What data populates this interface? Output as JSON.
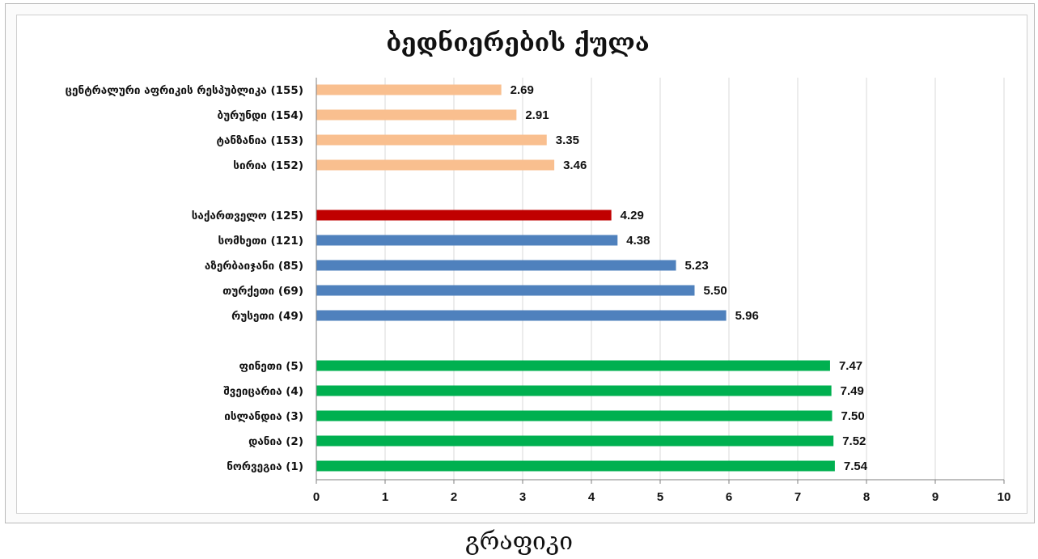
{
  "caption": "გრაფიკი",
  "chart_data": {
    "type": "bar",
    "orientation": "horizontal",
    "title": "ბედნიერების ქულა",
    "xlabel": "",
    "ylabel": "",
    "xlim": [
      0,
      10
    ],
    "x_ticks": [
      "0",
      "1",
      "2",
      "3",
      "4",
      "5",
      "6",
      "7",
      "8",
      "9",
      "10"
    ],
    "grid": true,
    "legend": "none",
    "groups": [
      {
        "color": "#f9bf8f",
        "bars": [
          {
            "label": "ცენტრალური აფრიკის რესპუბლიკა (155)",
            "value": 2.69,
            "value_label": "2.69"
          },
          {
            "label": "ბურუნდი (154)",
            "value": 2.91,
            "value_label": "2.91"
          },
          {
            "label": "ტანზანია (153)",
            "value": 3.35,
            "value_label": "3.35"
          },
          {
            "label": "სირია (152)",
            "value": 3.46,
            "value_label": "3.46"
          }
        ]
      },
      {
        "color": "#4f81bd",
        "bars": [
          {
            "label": "საქართველო (125)",
            "value": 4.29,
            "value_label": "4.29",
            "color": "#c00000"
          },
          {
            "label": "სომხეთი (121)",
            "value": 4.38,
            "value_label": "4.38"
          },
          {
            "label": "აზერბაიჯანი (85)",
            "value": 5.23,
            "value_label": "5.23"
          },
          {
            "label": "თურქეთი (69)",
            "value": 5.5,
            "value_label": "5.50"
          },
          {
            "label": "რუსეთი (49)",
            "value": 5.96,
            "value_label": "5.96"
          }
        ]
      },
      {
        "color": "#00b050",
        "bars": [
          {
            "label": "ფინეთი (5)",
            "value": 7.47,
            "value_label": "7.47"
          },
          {
            "label": "შვეიცარია (4)",
            "value": 7.49,
            "value_label": "7.49"
          },
          {
            "label": "ისლანდია (3)",
            "value": 7.5,
            "value_label": "7.50"
          },
          {
            "label": "დანია (2)",
            "value": 7.52,
            "value_label": "7.52"
          },
          {
            "label": "ნორვეგია (1)",
            "value": 7.54,
            "value_label": "7.54"
          }
        ]
      }
    ]
  }
}
